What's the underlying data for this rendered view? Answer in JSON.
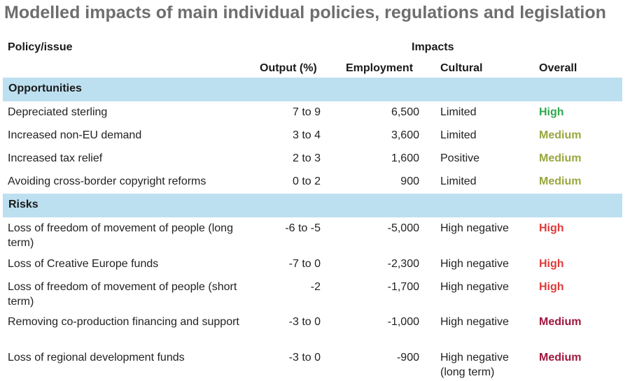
{
  "title": "Modelled impacts of main individual policies, regulations and legislation",
  "headers": {
    "policy": "Policy/issue",
    "impacts": "Impacts",
    "output": "Output (%)",
    "employment": "Employment",
    "cultural": "Cultural",
    "overall": "Overall"
  },
  "colors": {
    "section_band": "#bde0f0",
    "High_opportunity": "#2fa84f",
    "Medium_opportunity": "#9aa640",
    "High_risk": "#e03a3a",
    "Medium_risk": "#a0173e"
  },
  "chart_data": {
    "type": "table",
    "title": "Modelled impacts of main individual policies, regulations and legislation",
    "columns": [
      "Policy/issue",
      "Output (%)",
      "Employment",
      "Cultural",
      "Overall"
    ],
    "sections": [
      {
        "name": "Opportunities",
        "rows": [
          {
            "policy": "Depreciated sterling",
            "output": "7 to 9",
            "employment": "6,500",
            "cultural": "Limited",
            "overall": "High",
            "overall_color": "#2fa84f"
          },
          {
            "policy": "Increased non-EU demand",
            "output": "3 to 4",
            "employment": "3,600",
            "cultural": "Limited",
            "overall": "Medium",
            "overall_color": "#9aa640"
          },
          {
            "policy": "Increased tax relief",
            "output": "2 to 3",
            "employment": "1,600",
            "cultural": "Positive",
            "overall": "Medium",
            "overall_color": "#9aa640"
          },
          {
            "policy": "Avoiding cross-border copyright reforms",
            "output": "0 to 2",
            "employment": "900",
            "cultural": "Limited",
            "overall": "Medium",
            "overall_color": "#9aa640"
          }
        ]
      },
      {
        "name": "Risks",
        "rows": [
          {
            "policy": "Loss of freedom of movement of people (long term)",
            "output": "-6 to -5",
            "employment": "-5,000",
            "cultural": "High negative",
            "overall": "High",
            "overall_color": "#e03a3a"
          },
          {
            "policy": "Loss of Creative Europe funds",
            "output": "-7 to 0",
            "employment": "-2,300",
            "cultural": "High negative",
            "overall": "High",
            "overall_color": "#e03a3a"
          },
          {
            "policy": "Loss of freedom of movement of people (short term)",
            "output": "-2",
            "employment": "-1,700",
            "cultural": "High negative",
            "overall": "High",
            "overall_color": "#e03a3a"
          },
          {
            "policy": "Removing co-production financing and support",
            "output": "-3 to 0",
            "employment": "-1,000",
            "cultural": "High negative",
            "overall": "Medium",
            "overall_color": "#a0173e"
          },
          {
            "policy": "Loss of regional development funds",
            "output": "-3 to 0",
            "employment": "-900",
            "cultural": "High negative (long term)",
            "overall": "Medium",
            "overall_color": "#a0173e"
          }
        ]
      }
    ]
  }
}
